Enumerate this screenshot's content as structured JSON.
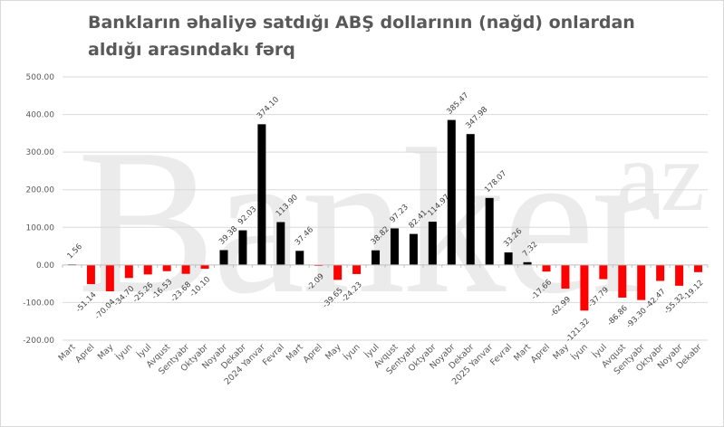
{
  "chart_data": {
    "type": "bar",
    "title": "Bankların əhaliyə satdığı ABŞ dollarının (nağd) onlardan aldığı arasındakı fərq",
    "title_lines": [
      "Bankların əhaliyə satdığı ABŞ dollarının (nağd) onlardan",
      "aldığı arasındakı fərq"
    ],
    "xlabel": "",
    "ylabel": "",
    "ylim": [
      -200,
      500
    ],
    "yticks": [
      "500.00",
      "400.00",
      "300.00",
      "200.00",
      "100.00",
      "0.00",
      "-100.00",
      "-200.00"
    ],
    "grid": true,
    "legend": "none",
    "colors": {
      "positive": "#000000",
      "negative": "#ff0000",
      "grid": "#d9d9d9",
      "text": "#595959"
    },
    "categories": [
      "Mart",
      "Aprel",
      "May",
      "İyun",
      "İyul",
      "Avqust",
      "Sentyabr",
      "Oktyabr",
      "Noyabr",
      "Dekabr",
      "2024 Yanvar",
      "Fevral",
      "Mart",
      "Aprel",
      "May",
      "İyun",
      "İyul",
      "Avqust",
      "Sentyabr",
      "Oktyabr",
      "Noyabr",
      "Dekabr",
      "2025 Yanvar",
      "Fevral",
      "Mart",
      "Aprel",
      "May",
      "İyun",
      "İyul",
      "Avqust",
      "Sentyabr",
      "Oktyabr",
      "Noyabr",
      "Dekabr"
    ],
    "values": [
      1.56,
      -51.14,
      -70.04,
      -34.7,
      -25.26,
      -16.53,
      -23.68,
      -10.1,
      39.38,
      92.03,
      374.1,
      113.9,
      37.46,
      -2.09,
      -39.65,
      -24.23,
      38.82,
      97.23,
      82.41,
      114.97,
      385.47,
      347.98,
      178.07,
      33.26,
      7.32,
      -17.66,
      -62.99,
      -121.32,
      -37.79,
      -86.86,
      -93.3,
      -42.47,
      -55.32,
      -19.12
    ],
    "labels": [
      "1.56",
      "-51.14",
      "-70.04",
      "-34.70",
      "-25.26",
      "-16.53",
      "-23.68",
      "-10.10",
      "39.38",
      "92.03",
      "374.10",
      "113.90",
      "37.46",
      "-2.09",
      "-39.65",
      "-24.23",
      "38.82",
      "97.23",
      "82.41",
      "114.97",
      "385.47",
      "347.98",
      "178.07",
      "33.26",
      "7.32",
      "-17.66",
      "-62.99",
      "-121.32",
      "-37.79",
      "-86.86",
      "-93.30",
      "-42.47",
      "-55.32",
      "-19.12"
    ]
  },
  "watermark": {
    "main": "Banker",
    "sup": "az"
  }
}
